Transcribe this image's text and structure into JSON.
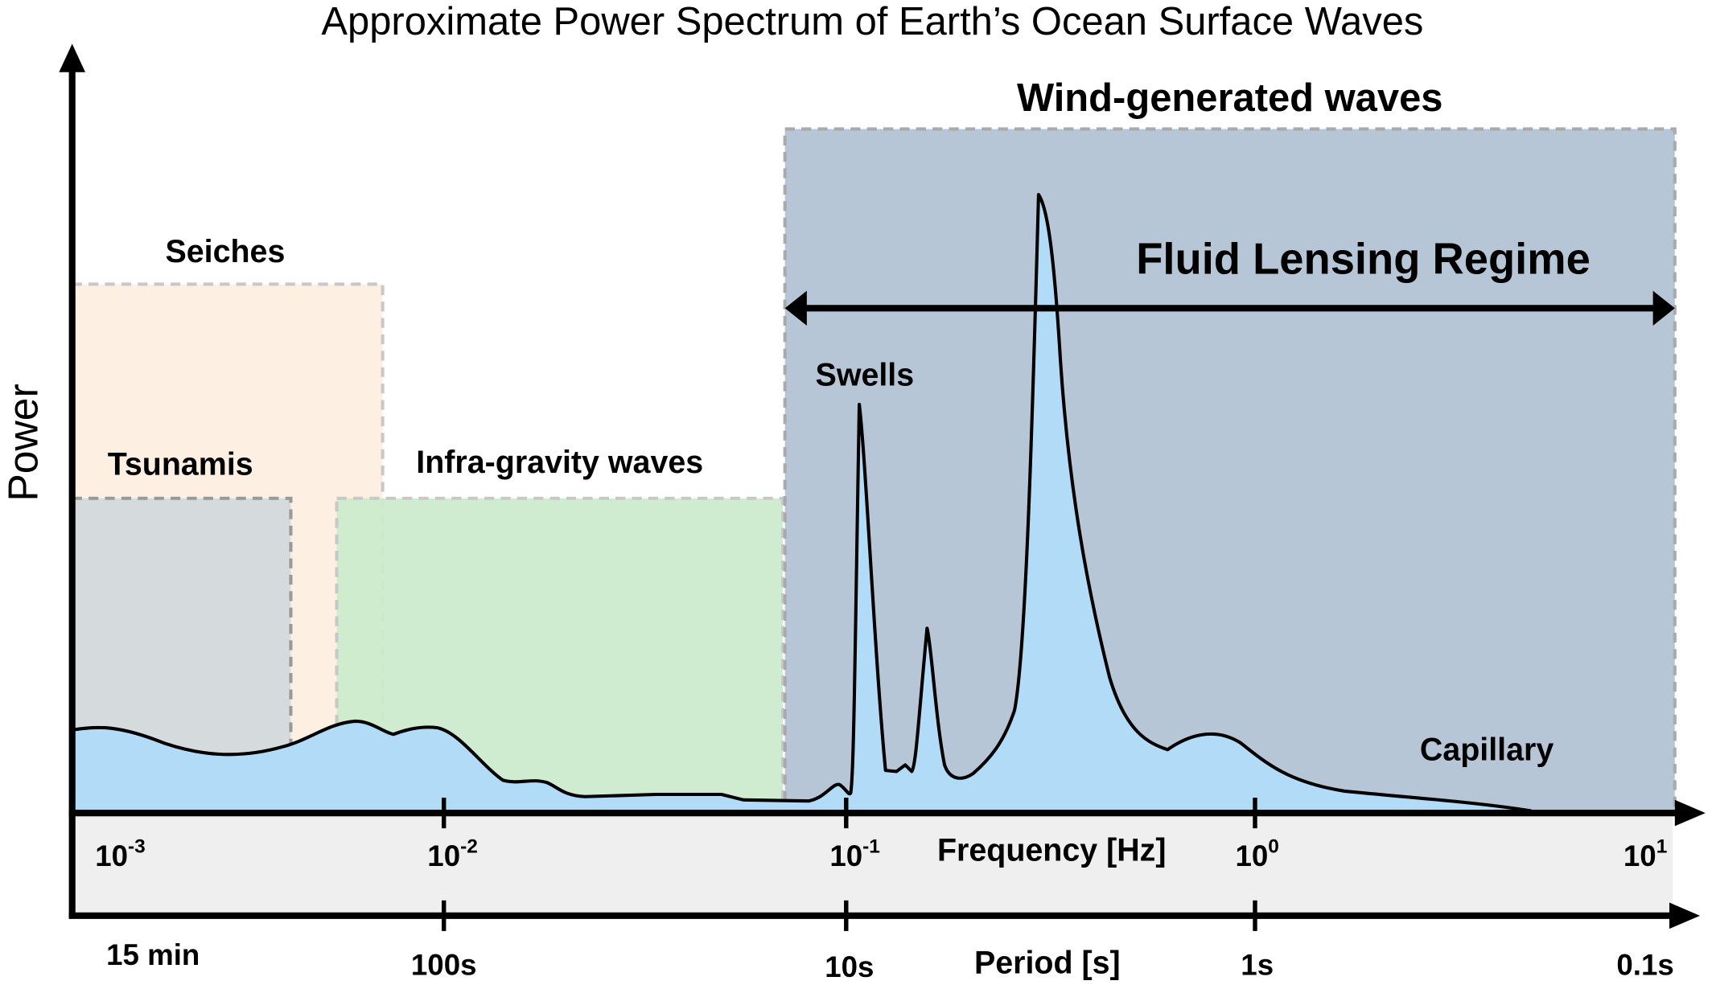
{
  "title": "Approximate Power Spectrum of Earth’s Ocean Surface Waves",
  "y_axis_label": "Power",
  "frequency_axis": {
    "label": "Frequency [Hz]",
    "ticks": [
      {
        "base": "10",
        "exp": "-3"
      },
      {
        "base": "10",
        "exp": "-2"
      },
      {
        "base": "10",
        "exp": "-1"
      },
      {
        "base": "10",
        "exp": "0"
      },
      {
        "base": "10",
        "exp": "1"
      }
    ]
  },
  "period_axis": {
    "label": "Period [s]",
    "ticks": [
      "15 min",
      "100s",
      "10s",
      "1s",
      "0.1s"
    ]
  },
  "regions": {
    "seiches": "Seiches",
    "tsunamis": "Tsunamis",
    "infra_gravity": "Infra-gravity waves",
    "wind": "Wind-generated waves"
  },
  "fluid_lensing": "Fluid Lensing Regime",
  "annotations": {
    "swells": "Swells",
    "capillary": "Capillary"
  }
}
